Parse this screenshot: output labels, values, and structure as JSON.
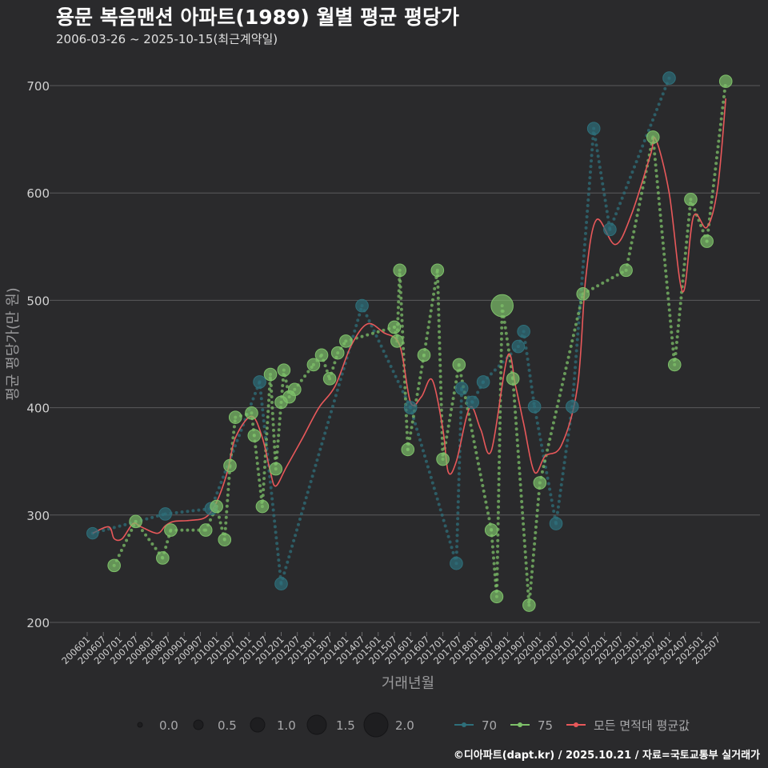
{
  "header": {
    "title": "용문 복음맨션 아파트(1989) 월별 평균 평당가",
    "subtitle": "2006-03-26 ~ 2025-10-15(최근계약일)"
  },
  "credit": "©디아파트(dapt.kr) / 2025.10.21 / 자료=국토교통부 실거래가",
  "colors": {
    "background": "#2a2a2c",
    "grid": "#5a5a5c",
    "series_70": "#2e6f7a",
    "series_75": "#7dc069",
    "series_all": "#e8585a"
  },
  "chart_data": {
    "type": "scatter",
    "title": "용문 복음맨션 아파트(1989) 월별 평균 평당가",
    "xlabel": "거래년월",
    "ylabel": "평균 평당가(만 원)",
    "ylim": [
      195,
      730
    ],
    "yticks": [
      200,
      300,
      400,
      500,
      600,
      700
    ],
    "x_start": "2006-01",
    "x_end": "2025-12",
    "xtick_labels": [
      "200601",
      "200607",
      "200701",
      "200707",
      "200801",
      "200807",
      "200901",
      "200907",
      "201001",
      "201007",
      "201101",
      "201107",
      "201201",
      "201207",
      "201301",
      "201307",
      "201401",
      "201407",
      "201501",
      "201507",
      "201601",
      "201607",
      "201701",
      "201707",
      "201801",
      "201807",
      "201901",
      "201907",
      "202001",
      "202007",
      "202101",
      "202107",
      "202201",
      "202207",
      "202301",
      "202307",
      "202401",
      "202407",
      "202501",
      "202507"
    ],
    "series": [
      {
        "name": "70",
        "color": "#2e6f7a",
        "points": [
          {
            "x": "2006-03",
            "y": 283,
            "size": 0.7
          },
          {
            "x": "2008-06",
            "y": 301,
            "size": 0.8
          },
          {
            "x": "2009-11",
            "y": 306,
            "size": 0.8
          },
          {
            "x": "2011-05",
            "y": 424,
            "size": 0.8
          },
          {
            "x": "2012-01",
            "y": 236,
            "size": 0.8
          },
          {
            "x": "2014-07",
            "y": 495,
            "size": 0.8
          },
          {
            "x": "2016-01",
            "y": 400,
            "size": 0.8
          },
          {
            "x": "2017-06",
            "y": 255,
            "size": 0.8
          },
          {
            "x": "2017-08",
            "y": 418,
            "size": 0.8
          },
          {
            "x": "2017-12",
            "y": 405,
            "size": 0.8
          },
          {
            "x": "2018-04",
            "y": 424,
            "size": 0.8
          },
          {
            "x": "2019-05",
            "y": 457,
            "size": 0.8
          },
          {
            "x": "2019-07",
            "y": 471,
            "size": 0.8
          },
          {
            "x": "2019-11",
            "y": 401,
            "size": 0.8
          },
          {
            "x": "2020-07",
            "y": 292,
            "size": 0.8
          },
          {
            "x": "2021-01",
            "y": 401,
            "size": 0.8
          },
          {
            "x": "2021-09",
            "y": 660,
            "size": 0.8
          },
          {
            "x": "2022-03",
            "y": 566,
            "size": 0.8
          },
          {
            "x": "2024-01",
            "y": 707,
            "size": 0.8
          }
        ]
      },
      {
        "name": "75",
        "color": "#7dc069",
        "points": [
          {
            "x": "2006-11",
            "y": 253,
            "size": 0.8
          },
          {
            "x": "2007-07",
            "y": 294,
            "size": 0.8
          },
          {
            "x": "2008-05",
            "y": 260,
            "size": 0.8
          },
          {
            "x": "2008-08",
            "y": 286,
            "size": 0.8
          },
          {
            "x": "2009-09",
            "y": 286,
            "size": 0.8
          },
          {
            "x": "2010-01",
            "y": 308,
            "size": 0.8
          },
          {
            "x": "2010-04",
            "y": 277,
            "size": 0.8
          },
          {
            "x": "2010-06",
            "y": 346,
            "size": 0.8
          },
          {
            "x": "2010-08",
            "y": 391,
            "size": 0.8
          },
          {
            "x": "2011-02",
            "y": 395,
            "size": 0.8
          },
          {
            "x": "2011-03",
            "y": 374,
            "size": 0.8
          },
          {
            "x": "2011-06",
            "y": 308,
            "size": 0.8
          },
          {
            "x": "2011-09",
            "y": 431,
            "size": 0.8
          },
          {
            "x": "2011-11",
            "y": 343,
            "size": 0.8
          },
          {
            "x": "2012-01",
            "y": 405,
            "size": 0.8
          },
          {
            "x": "2012-02",
            "y": 435,
            "size": 0.8
          },
          {
            "x": "2012-04",
            "y": 410,
            "size": 0.8
          },
          {
            "x": "2012-06",
            "y": 417,
            "size": 0.8
          },
          {
            "x": "2013-01",
            "y": 440,
            "size": 0.8
          },
          {
            "x": "2013-04",
            "y": 449,
            "size": 0.8
          },
          {
            "x": "2013-07",
            "y": 427,
            "size": 0.8
          },
          {
            "x": "2013-10",
            "y": 451,
            "size": 0.8
          },
          {
            "x": "2014-01",
            "y": 462,
            "size": 0.8
          },
          {
            "x": "2015-07",
            "y": 475,
            "size": 0.8
          },
          {
            "x": "2015-08",
            "y": 462,
            "size": 0.8
          },
          {
            "x": "2015-09",
            "y": 528,
            "size": 0.8
          },
          {
            "x": "2015-12",
            "y": 361,
            "size": 0.8
          },
          {
            "x": "2016-06",
            "y": 449,
            "size": 0.8
          },
          {
            "x": "2016-11",
            "y": 528,
            "size": 0.8
          },
          {
            "x": "2017-01",
            "y": 352,
            "size": 0.8
          },
          {
            "x": "2017-07",
            "y": 440,
            "size": 0.8
          },
          {
            "x": "2018-07",
            "y": 286,
            "size": 0.8
          },
          {
            "x": "2018-09",
            "y": 224,
            "size": 0.8
          },
          {
            "x": "2018-11",
            "y": 495,
            "size": 1.8
          },
          {
            "x": "2019-03",
            "y": 427,
            "size": 0.8
          },
          {
            "x": "2019-09",
            "y": 216,
            "size": 0.8
          },
          {
            "x": "2020-01",
            "y": 330,
            "size": 0.8
          },
          {
            "x": "2021-05",
            "y": 506,
            "size": 0.8
          },
          {
            "x": "2022-09",
            "y": 528,
            "size": 0.8
          },
          {
            "x": "2023-07",
            "y": 652,
            "size": 0.8
          },
          {
            "x": "2024-03",
            "y": 440,
            "size": 0.8
          },
          {
            "x": "2024-09",
            "y": 594,
            "size": 0.8
          },
          {
            "x": "2025-03",
            "y": 555,
            "size": 0.8
          },
          {
            "x": "2025-10",
            "y": 704,
            "size": 0.8
          }
        ]
      }
    ],
    "average_line": {
      "name": "모든 면적대 평균값",
      "color": "#e8585a",
      "points": [
        {
          "x": "2006-03",
          "y": 283
        },
        {
          "x": "2006-09",
          "y": 289
        },
        {
          "x": "2006-11",
          "y": 278
        },
        {
          "x": "2007-02",
          "y": 278
        },
        {
          "x": "2007-06",
          "y": 292
        },
        {
          "x": "2007-09",
          "y": 289
        },
        {
          "x": "2008-03",
          "y": 283
        },
        {
          "x": "2008-06",
          "y": 290
        },
        {
          "x": "2008-09",
          "y": 294
        },
        {
          "x": "2009-03",
          "y": 295
        },
        {
          "x": "2009-09",
          "y": 298
        },
        {
          "x": "2010-01",
          "y": 312
        },
        {
          "x": "2010-05",
          "y": 340
        },
        {
          "x": "2010-08",
          "y": 372
        },
        {
          "x": "2011-02",
          "y": 392
        },
        {
          "x": "2011-06",
          "y": 372
        },
        {
          "x": "2011-09",
          "y": 340
        },
        {
          "x": "2011-11",
          "y": 327
        },
        {
          "x": "2012-03",
          "y": 345
        },
        {
          "x": "2012-09",
          "y": 372
        },
        {
          "x": "2013-03",
          "y": 400
        },
        {
          "x": "2013-09",
          "y": 420
        },
        {
          "x": "2014-03",
          "y": 458
        },
        {
          "x": "2014-09",
          "y": 478
        },
        {
          "x": "2015-03",
          "y": 470
        },
        {
          "x": "2015-09",
          "y": 458
        },
        {
          "x": "2016-01",
          "y": 405
        },
        {
          "x": "2016-05",
          "y": 410
        },
        {
          "x": "2016-09",
          "y": 426
        },
        {
          "x": "2017-01",
          "y": 380
        },
        {
          "x": "2017-03",
          "y": 340
        },
        {
          "x": "2017-06",
          "y": 350
        },
        {
          "x": "2017-11",
          "y": 400
        },
        {
          "x": "2018-03",
          "y": 380
        },
        {
          "x": "2018-07",
          "y": 360
        },
        {
          "x": "2019-01",
          "y": 448
        },
        {
          "x": "2019-04",
          "y": 420
        },
        {
          "x": "2019-07",
          "y": 385
        },
        {
          "x": "2019-11",
          "y": 340
        },
        {
          "x": "2020-03",
          "y": 355
        },
        {
          "x": "2020-09",
          "y": 365
        },
        {
          "x": "2021-03",
          "y": 420
        },
        {
          "x": "2021-06",
          "y": 520
        },
        {
          "x": "2021-10",
          "y": 575
        },
        {
          "x": "2022-05",
          "y": 552
        },
        {
          "x": "2022-11",
          "y": 580
        },
        {
          "x": "2023-06",
          "y": 635
        },
        {
          "x": "2023-08",
          "y": 650
        },
        {
          "x": "2024-01",
          "y": 600
        },
        {
          "x": "2024-06",
          "y": 508
        },
        {
          "x": "2024-10",
          "y": 578
        },
        {
          "x": "2025-03",
          "y": 568
        },
        {
          "x": "2025-07",
          "y": 605
        },
        {
          "x": "2025-10",
          "y": 688
        }
      ]
    },
    "legend": {
      "position": "bottom",
      "size_items": [
        {
          "label": "0.0",
          "size": 0.0
        },
        {
          "label": "0.5",
          "size": 0.5
        },
        {
          "label": "1.0",
          "size": 1.0
        },
        {
          "label": "1.5",
          "size": 1.5
        },
        {
          "label": "2.0",
          "size": 2.0
        }
      ],
      "series_items": [
        {
          "label": "70",
          "color": "#2e6f7a"
        },
        {
          "label": "75",
          "color": "#7dc069"
        },
        {
          "label": "모든 면적대 평균값",
          "color": "#e8585a"
        }
      ]
    }
  }
}
